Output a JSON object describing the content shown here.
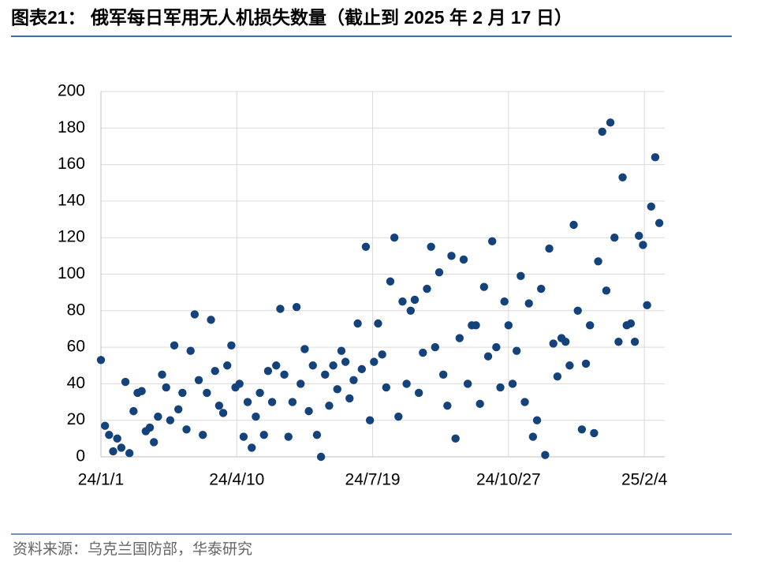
{
  "chart_data": {
    "type": "scatter",
    "title": "图表21： 俄军每日军用无人机损失数量（截止到 2025 年 2 月 17 日）",
    "source": "资料来源：乌克兰国防部，华泰研究",
    "color": "#14427a",
    "grid": true,
    "xlim": [
      "2024-01-01",
      "2025-02-19"
    ],
    "xticks": [
      {
        "value": "2024-01-01",
        "label": "24/1/1"
      },
      {
        "value": "2024-04-10",
        "label": "24/4/10"
      },
      {
        "value": "2024-07-19",
        "label": "24/7/19"
      },
      {
        "value": "2024-10-27",
        "label": "24/10/27"
      },
      {
        "value": "2025-02-04",
        "label": "25/2/4"
      }
    ],
    "ylim": [
      0,
      200
    ],
    "yticks": [
      0,
      20,
      40,
      60,
      80,
      100,
      120,
      140,
      160,
      180,
      200
    ],
    "x": [
      "2024-01-01",
      "2024-01-04",
      "2024-01-07",
      "2024-01-10",
      "2024-01-13",
      "2024-01-16",
      "2024-01-19",
      "2024-01-22",
      "2024-01-25",
      "2024-01-28",
      "2024-01-31",
      "2024-02-03",
      "2024-02-06",
      "2024-02-09",
      "2024-02-12",
      "2024-02-15",
      "2024-02-18",
      "2024-02-21",
      "2024-02-24",
      "2024-02-27",
      "2024-03-01",
      "2024-03-04",
      "2024-03-07",
      "2024-03-10",
      "2024-03-13",
      "2024-03-16",
      "2024-03-19",
      "2024-03-22",
      "2024-03-25",
      "2024-03-28",
      "2024-03-31",
      "2024-04-03",
      "2024-04-06",
      "2024-04-09",
      "2024-04-12",
      "2024-04-15",
      "2024-04-18",
      "2024-04-21",
      "2024-04-24",
      "2024-04-27",
      "2024-04-30",
      "2024-05-03",
      "2024-05-06",
      "2024-05-09",
      "2024-05-12",
      "2024-05-15",
      "2024-05-18",
      "2024-05-21",
      "2024-05-24",
      "2024-05-27",
      "2024-05-30",
      "2024-06-02",
      "2024-06-05",
      "2024-06-08",
      "2024-06-11",
      "2024-06-14",
      "2024-06-17",
      "2024-06-20",
      "2024-06-23",
      "2024-06-26",
      "2024-06-29",
      "2024-07-02",
      "2024-07-05",
      "2024-07-08",
      "2024-07-11",
      "2024-07-14",
      "2024-07-17",
      "2024-07-20",
      "2024-07-23",
      "2024-07-26",
      "2024-07-29",
      "2024-08-01",
      "2024-08-04",
      "2024-08-07",
      "2024-08-10",
      "2024-08-13",
      "2024-08-16",
      "2024-08-19",
      "2024-08-22",
      "2024-08-25",
      "2024-08-28",
      "2024-08-31",
      "2024-09-03",
      "2024-09-06",
      "2024-09-09",
      "2024-09-12",
      "2024-09-15",
      "2024-09-18",
      "2024-09-21",
      "2024-09-24",
      "2024-09-27",
      "2024-09-30",
      "2024-10-03",
      "2024-10-06",
      "2024-10-09",
      "2024-10-12",
      "2024-10-15",
      "2024-10-18",
      "2024-10-21",
      "2024-10-24",
      "2024-10-27",
      "2024-10-30",
      "2024-11-02",
      "2024-11-05",
      "2024-11-08",
      "2024-11-11",
      "2024-11-14",
      "2024-11-17",
      "2024-11-20",
      "2024-11-23",
      "2024-11-26",
      "2024-11-29",
      "2024-12-02",
      "2024-12-05",
      "2024-12-08",
      "2024-12-11",
      "2024-12-14",
      "2024-12-17",
      "2024-12-20",
      "2024-12-23",
      "2024-12-26",
      "2024-12-29",
      "2025-01-01",
      "2025-01-04",
      "2025-01-07",
      "2025-01-10",
      "2025-01-13",
      "2025-01-16",
      "2025-01-19",
      "2025-01-22",
      "2025-01-25",
      "2025-01-28",
      "2025-01-31",
      "2025-02-03",
      "2025-02-06",
      "2025-02-09",
      "2025-02-12",
      "2025-02-15"
    ],
    "values": [
      53,
      17,
      12,
      3,
      10,
      5,
      41,
      2,
      25,
      35,
      36,
      14,
      16,
      8,
      22,
      45,
      38,
      20,
      61,
      26,
      35,
      15,
      58,
      78,
      42,
      12,
      35,
      75,
      47,
      28,
      24,
      50,
      61,
      38,
      40,
      11,
      30,
      5,
      22,
      35,
      12,
      47,
      30,
      50,
      81,
      45,
      11,
      30,
      82,
      40,
      59,
      25,
      50,
      12,
      0,
      45,
      28,
      50,
      37,
      58,
      52,
      32,
      42,
      73,
      48,
      115,
      20,
      52,
      73,
      56,
      38,
      96,
      120,
      22,
      85,
      40,
      80,
      86,
      35,
      57,
      92,
      115,
      60,
      101,
      45,
      28,
      110,
      10,
      65,
      108,
      40,
      72,
      72,
      29,
      93,
      55,
      118,
      60,
      38,
      85,
      72,
      40,
      58,
      99,
      30,
      84,
      11,
      20,
      92,
      1,
      114,
      62,
      44,
      65,
      63,
      50,
      127,
      80,
      15,
      51,
      72,
      13,
      107,
      178,
      91,
      183,
      120,
      63,
      153,
      72,
      73,
      63,
      121,
      116,
      83,
      137,
      164,
      128
    ]
  }
}
